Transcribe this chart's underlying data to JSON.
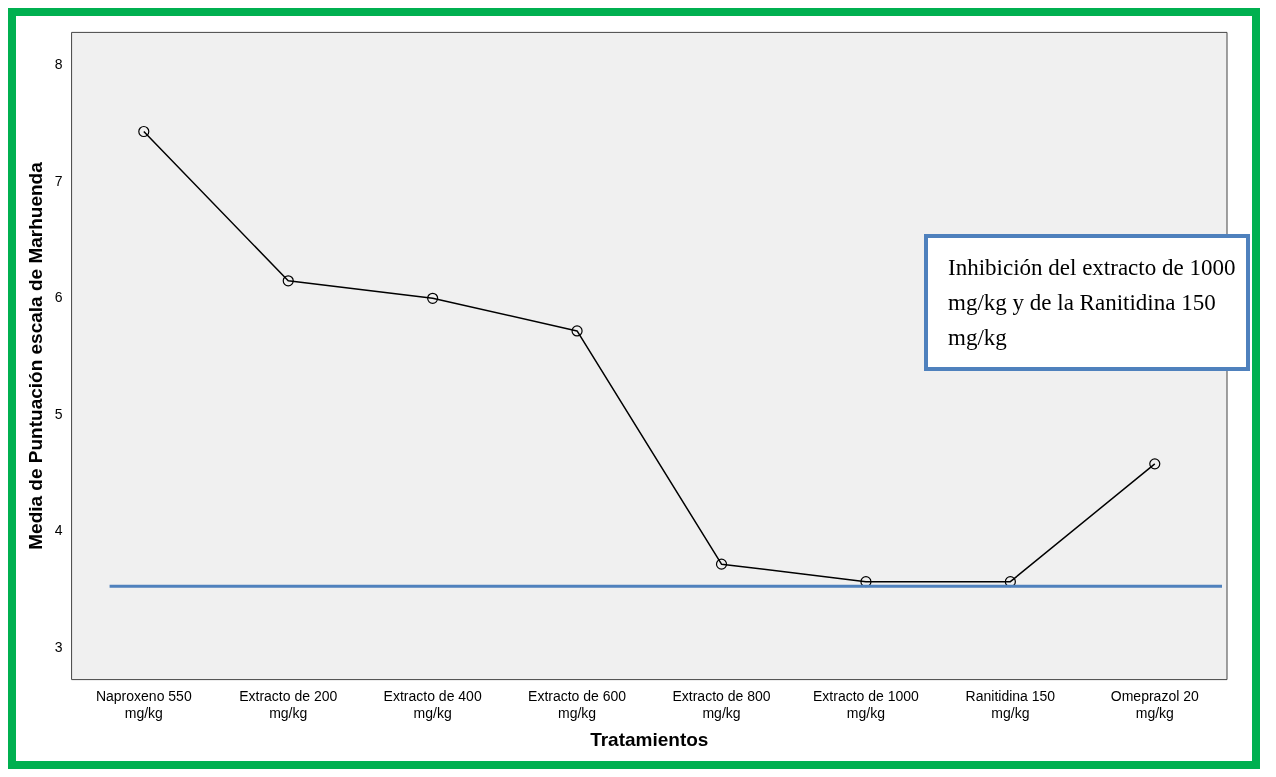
{
  "chart_data": {
    "type": "line",
    "xlabel": "Tratamientos",
    "ylabel": "Media de Puntuación escala de Marhuenda",
    "categories": [
      "Naproxeno 550 mg/kg",
      "Extracto de 200 mg/kg",
      "Extracto de 400 mg/kg",
      "Extracto de 600 mg/kg",
      "Extracto de 800 mg/kg",
      "Extracto de 1000 mg/kg",
      "Ranitidina 150 mg/kg",
      "Omeprazol 20 mg/kg"
    ],
    "series": [
      {
        "color": "#000000",
        "values": [
          7.43,
          6.15,
          6.0,
          5.72,
          3.72,
          3.57,
          3.57,
          4.58
        ]
      }
    ],
    "ylim": [
      2.73,
      8.28
    ],
    "yticks": [
      3,
      4,
      5,
      6,
      7,
      8
    ],
    "grid": false,
    "legend": false,
    "marker": "circle",
    "line_style": "solid",
    "ref_lines": [
      {
        "axis": "y",
        "value": 3.53,
        "color": "#4f81bd"
      }
    ],
    "annotations": [
      "Inhibición del extracto de 1000 mg/kg y de la Ranitidina 150 mg/kg"
    ]
  }
}
